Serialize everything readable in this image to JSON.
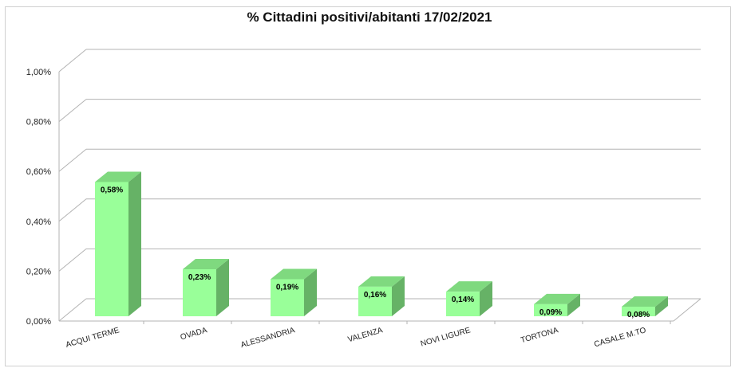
{
  "chart_data": {
    "type": "bar",
    "title": "% Cittadini positivi/abitanti 17/02/2021",
    "categories": [
      "ACQUI TERME",
      "OVADA",
      "ALESSANDRIA",
      "VALENZA",
      "NOVI LIGURE",
      "TORTONA",
      "CASALE M.TO"
    ],
    "values": [
      0.58,
      0.23,
      0.19,
      0.16,
      0.14,
      0.09,
      0.08
    ],
    "value_labels": [
      "0,58%",
      "0,23%",
      "0,19%",
      "0,16%",
      "0,14%",
      "0,09%",
      "0,08%"
    ],
    "yticks": [
      0,
      0.2,
      0.4,
      0.6,
      0.8,
      1.0
    ],
    "ytick_labels": [
      "0,00%",
      "0,20%",
      "0,40%",
      "0,60%",
      "0,80%",
      "1,00%"
    ],
    "ylim": [
      0,
      1.0
    ],
    "xlabel": "",
    "ylabel": "",
    "grid": true,
    "legend": "none",
    "colors": {
      "bar_front": "#99ff99",
      "bar_side": "#66b266",
      "bar_top": "#7fd97f",
      "grid": "#b3b3b3"
    }
  }
}
